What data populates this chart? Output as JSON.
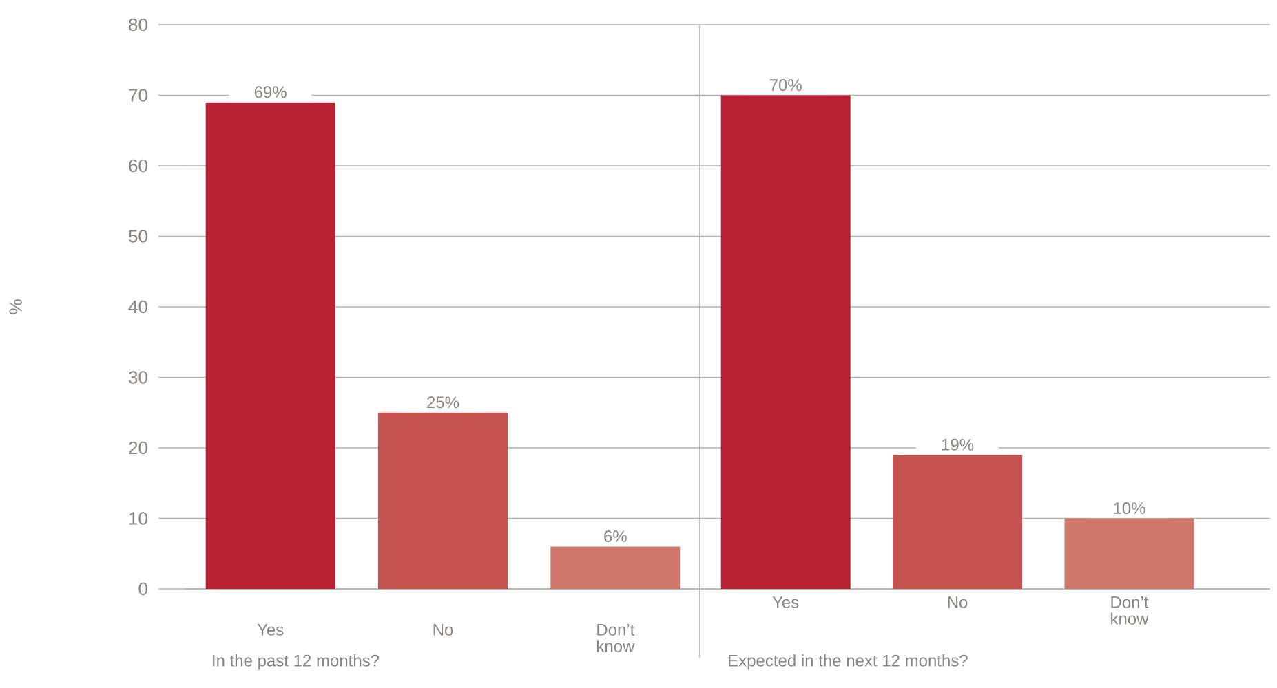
{
  "chart_data": [
    {
      "type": "bar",
      "ylabel": "%",
      "xlabel": "In the past 12 months?",
      "categories": [
        "Yes",
        "No",
        "Don’t know"
      ],
      "values": [
        69,
        25,
        6
      ],
      "value_labels": [
        "69%",
        "25%",
        "6%"
      ],
      "colors": [
        "#b82234",
        "#c4524e",
        "#d0776c"
      ],
      "ylim": [
        0,
        80
      ],
      "yticks": [
        0,
        10,
        20,
        30,
        40,
        50,
        60,
        70,
        80
      ],
      "grid": "y"
    },
    {
      "type": "bar",
      "xlabel": "Expected in the next 12 months?",
      "categories": [
        "Yes",
        "No",
        "Don’t know"
      ],
      "values": [
        70,
        19,
        10
      ],
      "value_labels": [
        "70%",
        "19%",
        "10%"
      ],
      "colors": [
        "#b82234",
        "#c4524e",
        "#d0776c"
      ],
      "ylim": [
        0,
        80
      ],
      "yticks": [
        0,
        10,
        20,
        30,
        40,
        50,
        60,
        70,
        80
      ],
      "grid": "y",
      "tick_labels": "x"
    }
  ]
}
